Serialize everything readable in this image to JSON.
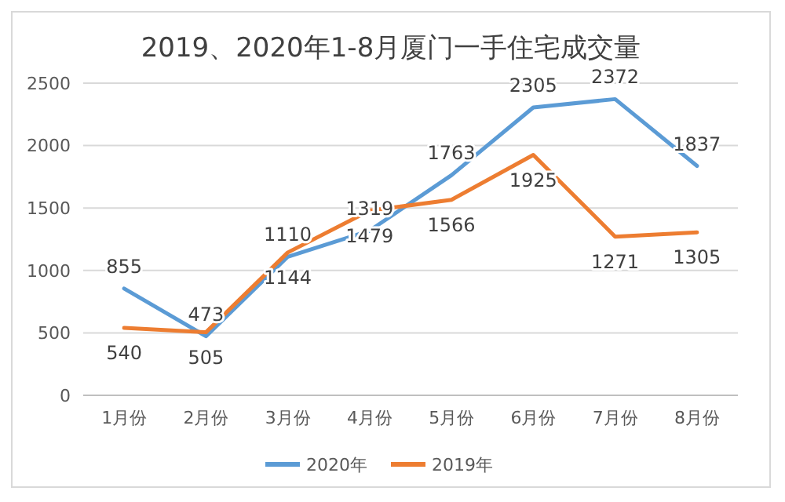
{
  "chart_data": {
    "type": "line",
    "title": "2019、2020年1-8月厦门一手住宅成交量",
    "categories": [
      "1月份",
      "2月份",
      "3月份",
      "4月份",
      "5月份",
      "6月份",
      "7月份",
      "8月份"
    ],
    "series": [
      {
        "name": "2020年",
        "color": "#5b9bd5",
        "values": [
          855,
          473,
          1110,
          1319,
          1763,
          2305,
          2372,
          1837
        ]
      },
      {
        "name": "2019年",
        "color": "#ed7d31",
        "values": [
          540,
          505,
          1144,
          1479,
          1566,
          1925,
          1271,
          1305
        ]
      }
    ],
    "ylim": [
      0,
      2500
    ],
    "yticks": [
      0,
      500,
      1000,
      1500,
      2000,
      2500
    ],
    "grid": "y",
    "legend": "bottom",
    "data_labels": true,
    "marker": "none",
    "line_style": "solid"
  }
}
